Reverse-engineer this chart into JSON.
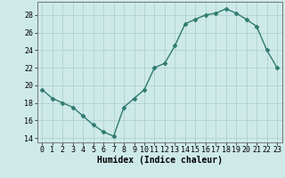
{
  "x": [
    0,
    1,
    2,
    3,
    4,
    5,
    6,
    7,
    8,
    9,
    10,
    11,
    12,
    13,
    14,
    15,
    16,
    17,
    18,
    19,
    20,
    21,
    22,
    23
  ],
  "y": [
    19.5,
    18.5,
    18.0,
    17.5,
    16.5,
    15.5,
    14.7,
    14.2,
    17.5,
    18.5,
    19.5,
    22.0,
    22.5,
    24.5,
    27.0,
    27.5,
    28.0,
    28.2,
    28.7,
    28.2,
    27.5,
    26.7,
    24.0,
    22.0
  ],
  "line_color": "#2e7b6e",
  "marker": "D",
  "markersize": 2.5,
  "bg_color": "#ceeae8",
  "grid_color": "#aacccc",
  "xlabel": "Humidex (Indice chaleur)",
  "xlim": [
    -0.5,
    23.5
  ],
  "ylim": [
    13.5,
    29.5
  ],
  "yticks": [
    14,
    16,
    18,
    20,
    22,
    24,
    26,
    28
  ],
  "xticks": [
    0,
    1,
    2,
    3,
    4,
    5,
    6,
    7,
    8,
    9,
    10,
    11,
    12,
    13,
    14,
    15,
    16,
    17,
    18,
    19,
    20,
    21,
    22,
    23
  ],
  "xlabel_fontsize": 7,
  "tick_fontsize": 6,
  "linewidth": 1.0
}
